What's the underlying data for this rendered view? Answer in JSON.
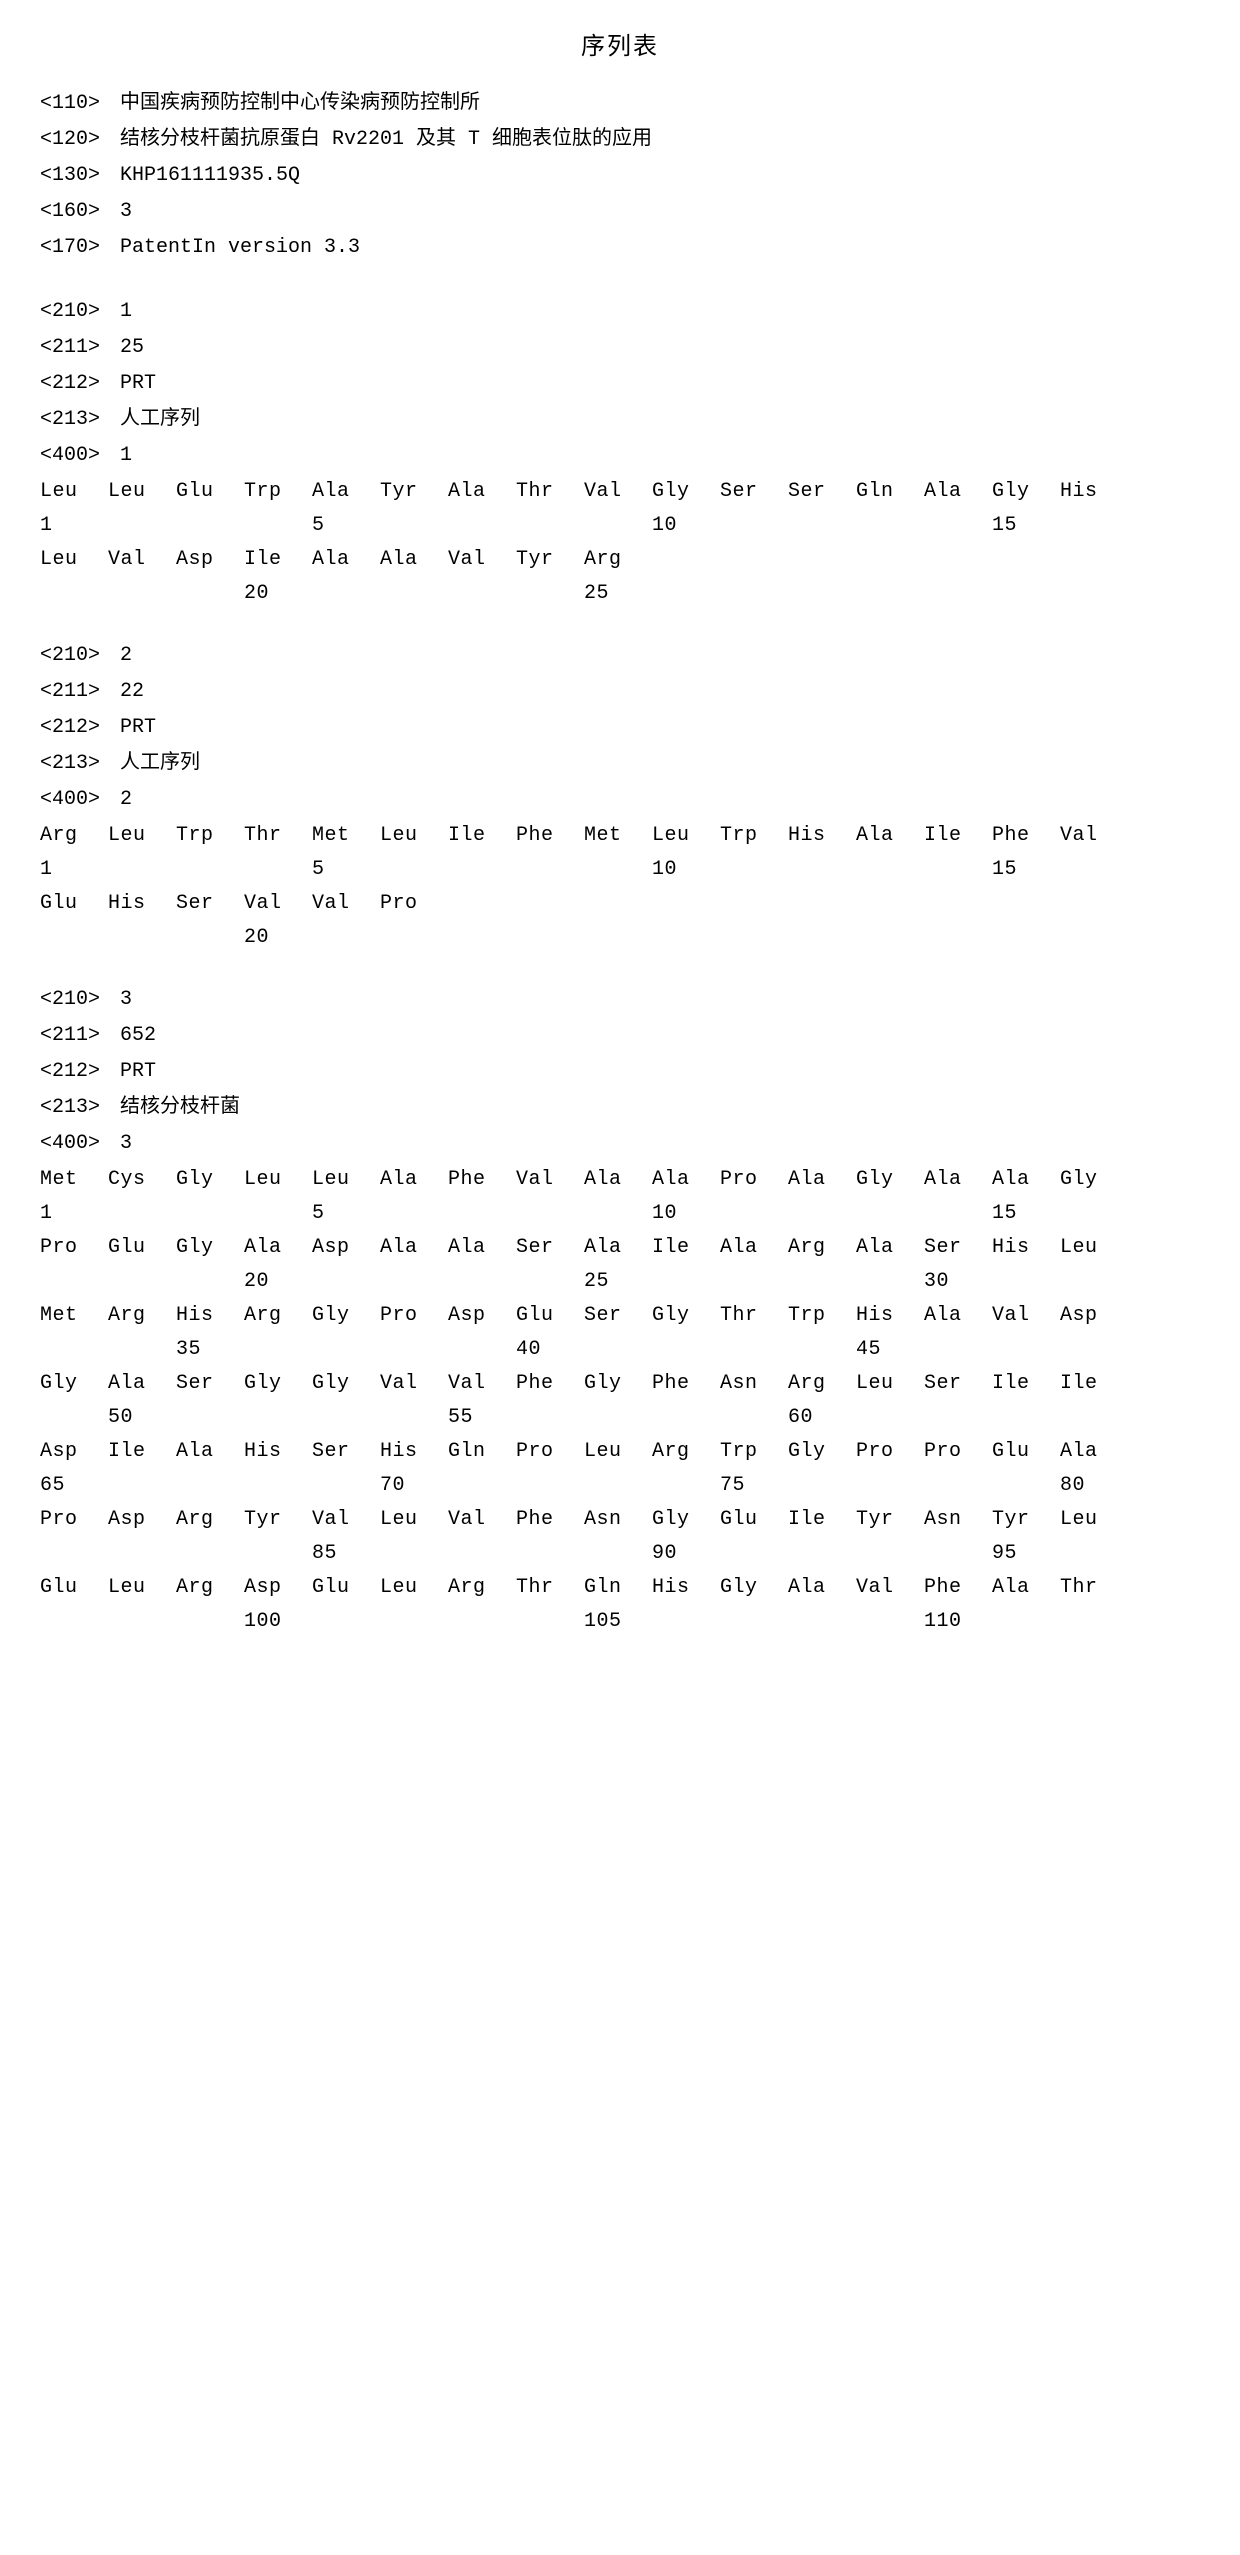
{
  "title": "序列表",
  "headers": {
    "h110": {
      "tag": "<110>",
      "value": "中国疾病预防控制中心传染病预防控制所"
    },
    "h120": {
      "tag": "<120>",
      "value": "结核分枝杆菌抗原蛋白 Rv2201 及其 T 细胞表位肽的应用"
    },
    "h130": {
      "tag": "<130>",
      "value": "KHP161111935.5Q"
    },
    "h160": {
      "tag": "<160>",
      "value": "3"
    },
    "h170": {
      "tag": "<170>",
      "value": "PatentIn version 3.3"
    }
  },
  "sequences": [
    {
      "h210": {
        "tag": "<210>",
        "value": "1"
      },
      "h211": {
        "tag": "<211>",
        "value": "25"
      },
      "h212": {
        "tag": "<212>",
        "value": "PRT"
      },
      "h213": {
        "tag": "<213>",
        "value": "人工序列"
      },
      "h400": {
        "tag": "<400>",
        "value": "1"
      },
      "rows": [
        {
          "aa": [
            "Leu",
            "Leu",
            "Glu",
            "Trp",
            "Ala",
            "Tyr",
            "Ala",
            "Thr",
            "Val",
            "Gly",
            "Ser",
            "Ser",
            "Gln",
            "Ala",
            "Gly",
            "His"
          ],
          "nums": [
            "1",
            "",
            "",
            "",
            "5",
            "",
            "",
            "",
            "",
            "10",
            "",
            "",
            "",
            "",
            "15",
            ""
          ]
        },
        {
          "aa": [
            "Leu",
            "Val",
            "Asp",
            "Ile",
            "Ala",
            "Ala",
            "Val",
            "Tyr",
            "Arg",
            "",
            "",
            "",
            "",
            "",
            "",
            ""
          ],
          "nums": [
            "",
            "",
            "",
            "20",
            "",
            "",
            "",
            "",
            "25",
            "",
            "",
            "",
            "",
            "",
            "",
            ""
          ]
        }
      ]
    },
    {
      "h210": {
        "tag": "<210>",
        "value": "2"
      },
      "h211": {
        "tag": "<211>",
        "value": "22"
      },
      "h212": {
        "tag": "<212>",
        "value": "PRT"
      },
      "h213": {
        "tag": "<213>",
        "value": "人工序列"
      },
      "h400": {
        "tag": "<400>",
        "value": "2"
      },
      "rows": [
        {
          "aa": [
            "Arg",
            "Leu",
            "Trp",
            "Thr",
            "Met",
            "Leu",
            "Ile",
            "Phe",
            "Met",
            "Leu",
            "Trp",
            "His",
            "Ala",
            "Ile",
            "Phe",
            "Val"
          ],
          "nums": [
            "1",
            "",
            "",
            "",
            "5",
            "",
            "",
            "",
            "",
            "10",
            "",
            "",
            "",
            "",
            "15",
            ""
          ]
        },
        {
          "aa": [
            "Glu",
            "His",
            "Ser",
            "Val",
            "Val",
            "Pro",
            "",
            "",
            "",
            "",
            "",
            "",
            "",
            "",
            "",
            ""
          ],
          "nums": [
            "",
            "",
            "",
            "20",
            "",
            "",
            "",
            "",
            "",
            "",
            "",
            "",
            "",
            "",
            "",
            ""
          ]
        }
      ]
    },
    {
      "h210": {
        "tag": "<210>",
        "value": "3"
      },
      "h211": {
        "tag": "<211>",
        "value": "652"
      },
      "h212": {
        "tag": "<212>",
        "value": "PRT"
      },
      "h213": {
        "tag": "<213>",
        "value": "结核分枝杆菌"
      },
      "h400": {
        "tag": "<400>",
        "value": "3"
      },
      "rows": [
        {
          "aa": [
            "Met",
            "Cys",
            "Gly",
            "Leu",
            "Leu",
            "Ala",
            "Phe",
            "Val",
            "Ala",
            "Ala",
            "Pro",
            "Ala",
            "Gly",
            "Ala",
            "Ala",
            "Gly"
          ],
          "nums": [
            "1",
            "",
            "",
            "",
            "5",
            "",
            "",
            "",
            "",
            "10",
            "",
            "",
            "",
            "",
            "15",
            ""
          ]
        },
        {
          "aa": [
            "Pro",
            "Glu",
            "Gly",
            "Ala",
            "Asp",
            "Ala",
            "Ala",
            "Ser",
            "Ala",
            "Ile",
            "Ala",
            "Arg",
            "Ala",
            "Ser",
            "His",
            "Leu"
          ],
          "nums": [
            "",
            "",
            "",
            "20",
            "",
            "",
            "",
            "",
            "25",
            "",
            "",
            "",
            "",
            "30",
            "",
            ""
          ]
        },
        {
          "aa": [
            "Met",
            "Arg",
            "His",
            "Arg",
            "Gly",
            "Pro",
            "Asp",
            "Glu",
            "Ser",
            "Gly",
            "Thr",
            "Trp",
            "His",
            "Ala",
            "Val",
            "Asp"
          ],
          "nums": [
            "",
            "",
            "35",
            "",
            "",
            "",
            "",
            "40",
            "",
            "",
            "",
            "",
            "45",
            "",
            "",
            ""
          ]
        },
        {
          "aa": [
            "Gly",
            "Ala",
            "Ser",
            "Gly",
            "Gly",
            "Val",
            "Val",
            "Phe",
            "Gly",
            "Phe",
            "Asn",
            "Arg",
            "Leu",
            "Ser",
            "Ile",
            "Ile"
          ],
          "nums": [
            "",
            "50",
            "",
            "",
            "",
            "",
            "55",
            "",
            "",
            "",
            "",
            "60",
            "",
            "",
            "",
            ""
          ]
        },
        {
          "aa": [
            "Asp",
            "Ile",
            "Ala",
            "His",
            "Ser",
            "His",
            "Gln",
            "Pro",
            "Leu",
            "Arg",
            "Trp",
            "Gly",
            "Pro",
            "Pro",
            "Glu",
            "Ala"
          ],
          "nums": [
            "65",
            "",
            "",
            "",
            "",
            "70",
            "",
            "",
            "",
            "",
            "75",
            "",
            "",
            "",
            "",
            "80"
          ]
        },
        {
          "aa": [
            "Pro",
            "Asp",
            "Arg",
            "Tyr",
            "Val",
            "Leu",
            "Val",
            "Phe",
            "Asn",
            "Gly",
            "Glu",
            "Ile",
            "Tyr",
            "Asn",
            "Tyr",
            "Leu"
          ],
          "nums": [
            "",
            "",
            "",
            "",
            "85",
            "",
            "",
            "",
            "",
            "90",
            "",
            "",
            "",
            "",
            "95",
            ""
          ]
        },
        {
          "aa": [
            "Glu",
            "Leu",
            "Arg",
            "Asp",
            "Glu",
            "Leu",
            "Arg",
            "Thr",
            "Gln",
            "His",
            "Gly",
            "Ala",
            "Val",
            "Phe",
            "Ala",
            "Thr"
          ],
          "nums": [
            "",
            "",
            "",
            "100",
            "",
            "",
            "",
            "",
            "105",
            "",
            "",
            "",
            "",
            "110",
            "",
            ""
          ]
        }
      ]
    }
  ]
}
